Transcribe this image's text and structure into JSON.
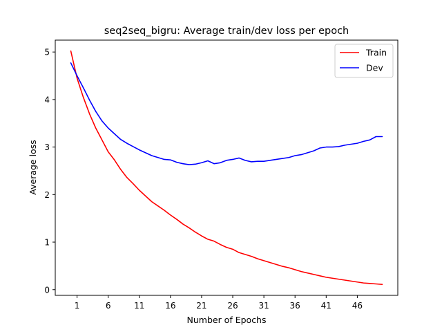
{
  "chart_data": {
    "type": "line",
    "title": "seq2seq_bigru: Average train/dev loss per epoch",
    "xlabel": "Number of Epochs",
    "ylabel": "Average loss",
    "xlim": [
      -2.5,
      52.5
    ],
    "ylim": [
      -0.12,
      5.25
    ],
    "xticks": [
      1,
      6,
      11,
      16,
      21,
      26,
      31,
      36,
      41,
      46
    ],
    "yticks": [
      0,
      1,
      2,
      3,
      4,
      5
    ],
    "grid": false,
    "legend_position": "top-right",
    "x": [
      0,
      1,
      2,
      3,
      4,
      5,
      6,
      7,
      8,
      9,
      10,
      11,
      12,
      13,
      14,
      15,
      16,
      17,
      18,
      19,
      20,
      21,
      22,
      23,
      24,
      25,
      26,
      27,
      28,
      29,
      30,
      31,
      32,
      33,
      34,
      35,
      36,
      37,
      38,
      39,
      40,
      41,
      42,
      43,
      44,
      45,
      46,
      47,
      48,
      49,
      50
    ],
    "series": [
      {
        "name": "Train",
        "color": "#ff0000",
        "values": [
          5.02,
          4.45,
          4.05,
          3.7,
          3.4,
          3.15,
          2.9,
          2.73,
          2.53,
          2.36,
          2.23,
          2.09,
          1.97,
          1.85,
          1.76,
          1.67,
          1.57,
          1.48,
          1.38,
          1.3,
          1.21,
          1.13,
          1.06,
          1.02,
          0.95,
          0.89,
          0.85,
          0.78,
          0.74,
          0.7,
          0.65,
          0.61,
          0.57,
          0.53,
          0.49,
          0.46,
          0.42,
          0.38,
          0.35,
          0.32,
          0.29,
          0.26,
          0.24,
          0.22,
          0.2,
          0.18,
          0.16,
          0.14,
          0.13,
          0.12,
          0.11
        ]
      },
      {
        "name": "Dev",
        "color": "#0000ff",
        "values": [
          4.77,
          4.5,
          4.25,
          3.99,
          3.75,
          3.55,
          3.4,
          3.28,
          3.16,
          3.08,
          3.01,
          2.94,
          2.88,
          2.82,
          2.78,
          2.74,
          2.73,
          2.68,
          2.65,
          2.63,
          2.64,
          2.67,
          2.71,
          2.65,
          2.67,
          2.72,
          2.74,
          2.77,
          2.72,
          2.69,
          2.7,
          2.7,
          2.72,
          2.74,
          2.76,
          2.78,
          2.82,
          2.84,
          2.88,
          2.92,
          2.98,
          3.0,
          3.0,
          3.01,
          3.04,
          3.06,
          3.08,
          3.12,
          3.15,
          3.22,
          3.22
        ]
      }
    ]
  }
}
